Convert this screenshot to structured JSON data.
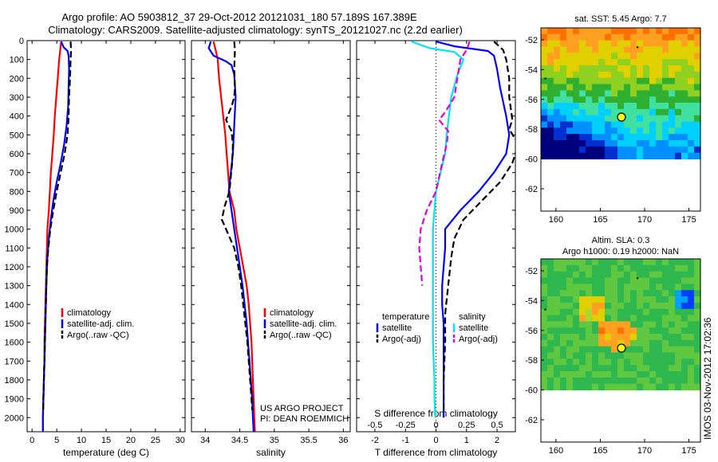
{
  "header": {
    "line1": "Argo profile: AO 5903812_37 29-Oct-2012 20121031_180 57.189S 167.389E",
    "line2": "Climatology: CARS2009. Satellite-adjusted climatology: synTS_20121027.nc (2.2d earlier)"
  },
  "credit": "IMOS 03-Nov-2012 17:02:36",
  "colors": {
    "climatology": "#ff0000",
    "satellite": "#0000ff",
    "argo": "#000000",
    "satellite_cyan": "#00e5ee",
    "argo_magenta": "#e000e0"
  },
  "chart_data": [
    {
      "type": "line",
      "id": "temperature",
      "xlabel": "temperature (deg C)",
      "ylabel": "",
      "xlim": [
        -1,
        31
      ],
      "ylim": [
        2075,
        0
      ],
      "xticks": [
        0,
        5,
        10,
        15,
        20,
        25,
        30
      ],
      "yticks": [
        0,
        100,
        200,
        300,
        400,
        500,
        600,
        700,
        800,
        900,
        1000,
        1100,
        1200,
        1300,
        1400,
        1500,
        1600,
        1700,
        1800,
        1900,
        2000
      ],
      "legend": [
        "climatology",
        "satellite-adj. clim.",
        "Argo(..raw -QC)"
      ],
      "series": [
        {
          "name": "climatology",
          "color": "#ff0000",
          "dash": false,
          "points": [
            [
              5.9,
              5
            ],
            [
              5.7,
              50
            ],
            [
              5.5,
              100
            ],
            [
              5.2,
              200
            ],
            [
              4.9,
              300
            ],
            [
              4.6,
              400
            ],
            [
              4.4,
              500
            ],
            [
              4.1,
              600
            ],
            [
              3.8,
              700
            ],
            [
              3.6,
              800
            ],
            [
              3.4,
              900
            ],
            [
              3.1,
              1000
            ],
            [
              3.0,
              1100
            ],
            [
              2.9,
              1200
            ],
            [
              2.8,
              1300
            ],
            [
              2.7,
              1400
            ],
            [
              2.6,
              1500
            ],
            [
              2.5,
              1600
            ],
            [
              2.5,
              1700
            ],
            [
              2.4,
              1800
            ],
            [
              2.3,
              1900
            ],
            [
              2.2,
              2000
            ],
            [
              2.2,
              2075
            ]
          ]
        },
        {
          "name": "satellite-adj. clim.",
          "color": "#0000ff",
          "dash": false,
          "points": [
            [
              5.9,
              5
            ],
            [
              6.4,
              35
            ],
            [
              7.2,
              55
            ],
            [
              7.4,
              80
            ],
            [
              7.5,
              150
            ],
            [
              7.4,
              250
            ],
            [
              7.3,
              350
            ],
            [
              7.0,
              450
            ],
            [
              6.5,
              550
            ],
            [
              5.8,
              650
            ],
            [
              5.0,
              750
            ],
            [
              4.3,
              850
            ],
            [
              3.8,
              950
            ],
            [
              3.4,
              1050
            ],
            [
              3.1,
              1150
            ],
            [
              2.9,
              1300
            ],
            [
              2.8,
              1400
            ],
            [
              2.7,
              1500
            ],
            [
              2.6,
              1600
            ],
            [
              2.5,
              1700
            ],
            [
              2.4,
              1800
            ],
            [
              2.3,
              1900
            ],
            [
              2.2,
              2000
            ],
            [
              2.2,
              2075
            ]
          ]
        },
        {
          "name": "Argo(..raw -QC)",
          "color": "#000000",
          "dash": true,
          "points": [
            [
              7.8,
              5
            ],
            [
              7.9,
              50
            ],
            [
              7.8,
              100
            ],
            [
              7.7,
              200
            ],
            [
              7.5,
              300
            ],
            [
              7.4,
              400
            ],
            [
              7.2,
              500
            ],
            [
              6.6,
              600
            ],
            [
              5.8,
              700
            ],
            [
              5.0,
              800
            ],
            [
              4.3,
              900
            ],
            [
              3.7,
              1000
            ],
            [
              3.3,
              1100
            ],
            [
              3.0,
              1200
            ],
            [
              2.9,
              1300
            ],
            [
              2.8,
              1400
            ],
            [
              2.7,
              1500
            ],
            [
              2.6,
              1600
            ],
            [
              2.5,
              1700
            ],
            [
              2.4,
              1800
            ],
            [
              2.3,
              1900
            ],
            [
              2.25,
              1960
            ]
          ]
        }
      ]
    },
    {
      "type": "line",
      "id": "salinity",
      "xlabel": "salinity",
      "ylabel": "",
      "xlim": [
        33.8,
        36.1
      ],
      "ylim": [
        2075,
        0
      ],
      "xticks": [
        34,
        34.5,
        35,
        35.5,
        36
      ],
      "legend": [
        "climatology",
        "satellite-adj. clim.",
        "Argo(..raw -QC)"
      ],
      "annotation": [
        "US ARGO PROJECT",
        "PI: DEAN ROEMMICH"
      ],
      "series": [
        {
          "name": "climatology",
          "color": "#ff0000",
          "dash": false,
          "points": [
            [
              34.12,
              5
            ],
            [
              34.15,
              50
            ],
            [
              34.18,
              100
            ],
            [
              34.2,
              200
            ],
            [
              34.23,
              300
            ],
            [
              34.26,
              400
            ],
            [
              34.29,
              500
            ],
            [
              34.31,
              600
            ],
            [
              34.33,
              700
            ],
            [
              34.35,
              800
            ],
            [
              34.42,
              900
            ],
            [
              34.45,
              1000
            ],
            [
              34.5,
              1100
            ],
            [
              34.55,
              1200
            ],
            [
              34.6,
              1300
            ],
            [
              34.63,
              1400
            ],
            [
              34.65,
              1500
            ],
            [
              34.67,
              1600
            ],
            [
              34.68,
              1700
            ],
            [
              34.69,
              1800
            ],
            [
              34.7,
              1900
            ],
            [
              34.71,
              2000
            ],
            [
              34.72,
              2075
            ]
          ]
        },
        {
          "name": "satellite-adj. clim.",
          "color": "#0000ff",
          "dash": false,
          "points": [
            [
              34.08,
              5
            ],
            [
              34.05,
              40
            ],
            [
              34.12,
              80
            ],
            [
              34.3,
              110
            ],
            [
              34.38,
              130
            ],
            [
              34.42,
              180
            ],
            [
              34.44,
              300
            ],
            [
              34.42,
              450
            ],
            [
              34.4,
              600
            ],
            [
              34.37,
              700
            ],
            [
              34.34,
              800
            ],
            [
              34.38,
              900
            ],
            [
              34.42,
              1000
            ],
            [
              34.46,
              1100
            ],
            [
              34.5,
              1200
            ],
            [
              34.54,
              1300
            ],
            [
              34.57,
              1400
            ],
            [
              34.6,
              1500
            ],
            [
              34.62,
              1600
            ],
            [
              34.64,
              1700
            ],
            [
              34.66,
              1800
            ],
            [
              34.68,
              1900
            ],
            [
              34.69,
              2000
            ],
            [
              34.7,
              2075
            ]
          ]
        },
        {
          "name": "Argo(..raw -QC)",
          "color": "#000000",
          "dash": true,
          "points": [
            [
              34.42,
              5
            ],
            [
              34.43,
              50
            ],
            [
              34.42,
              150
            ],
            [
              34.43,
              250
            ],
            [
              34.42,
              300
            ],
            [
              34.38,
              350
            ],
            [
              34.3,
              420
            ],
            [
              34.38,
              480
            ],
            [
              34.4,
              550
            ],
            [
              34.39,
              650
            ],
            [
              34.35,
              800
            ],
            [
              34.28,
              880
            ],
            [
              34.24,
              950
            ],
            [
              34.3,
              1000
            ],
            [
              34.42,
              1100
            ],
            [
              34.48,
              1200
            ],
            [
              34.52,
              1300
            ],
            [
              34.55,
              1400
            ],
            [
              34.58,
              1500
            ],
            [
              34.61,
              1600
            ],
            [
              34.63,
              1700
            ],
            [
              34.65,
              1800
            ],
            [
              34.67,
              1900
            ],
            [
              34.68,
              1960
            ]
          ]
        }
      ]
    },
    {
      "type": "line",
      "id": "difference",
      "xlabel": "T difference from climatology",
      "xlabel_top": "S difference from climatology",
      "xlim": [
        -2.6,
        2.6
      ],
      "ylim": [
        2075,
        0
      ],
      "xticks": [
        -2,
        -1,
        0,
        1,
        2
      ],
      "sticks": [
        -0.5,
        -0.25,
        0,
        0.25,
        0.5
      ],
      "legend_groups": [
        {
          "title": "temperature",
          "items": [
            "satellite",
            "Argo(-adj)"
          ]
        },
        {
          "title": "salinity",
          "items": [
            "satellite",
            "Argo(-adj)"
          ]
        }
      ],
      "series": [
        {
          "name": "satellite",
          "group": "temperature",
          "color": "#0000ff",
          "dash": false,
          "points": [
            [
              0.0,
              5
            ],
            [
              0.6,
              30
            ],
            [
              1.7,
              55
            ],
            [
              1.9,
              80
            ],
            [
              2.0,
              150
            ],
            [
              2.1,
              250
            ],
            [
              2.3,
              400
            ],
            [
              2.4,
              500
            ],
            [
              2.3,
              600
            ],
            [
              1.9,
              700
            ],
            [
              1.4,
              800
            ],
            [
              0.8,
              900
            ],
            [
              0.3,
              1000
            ],
            [
              0.3,
              1100
            ],
            [
              0.25,
              1200
            ],
            [
              0.2,
              1300
            ],
            [
              0.2,
              1400
            ],
            [
              0.25,
              1500
            ],
            [
              0.25,
              1600
            ],
            [
              0.25,
              1700
            ],
            [
              0.25,
              1800
            ],
            [
              0.25,
              1900
            ],
            [
              0.25,
              2000
            ]
          ]
        },
        {
          "name": "Argo(-adj)",
          "group": "temperature",
          "color": "#000000",
          "dash": true,
          "points": [
            [
              1.9,
              5
            ],
            [
              2.2,
              50
            ],
            [
              2.3,
              100
            ],
            [
              2.4,
              200
            ],
            [
              2.4,
              300
            ],
            [
              2.5,
              420
            ],
            [
              2.4,
              470
            ],
            [
              2.7,
              550
            ],
            [
              2.5,
              650
            ],
            [
              2.1,
              750
            ],
            [
              1.5,
              850
            ],
            [
              0.9,
              950
            ],
            [
              0.6,
              1050
            ],
            [
              0.5,
              1150
            ],
            [
              0.4,
              1300
            ],
            [
              0.3,
              1450
            ],
            [
              0.3,
              1600
            ],
            [
              0.25,
              1800
            ],
            [
              0.25,
              1960
            ]
          ]
        },
        {
          "name": "satellite",
          "group": "salinity",
          "color": "#00e5ee",
          "dash": false,
          "points": [
            [
              -0.8,
              5
            ],
            [
              -0.2,
              40
            ],
            [
              0.6,
              60
            ],
            [
              0.9,
              100
            ],
            [
              0.7,
              180
            ],
            [
              0.5,
              300
            ],
            [
              0.35,
              500
            ],
            [
              0.3,
              600
            ],
            [
              0.15,
              700
            ],
            [
              0.0,
              800
            ],
            [
              -0.05,
              900
            ],
            [
              -0.1,
              1000
            ],
            [
              -0.1,
              1200
            ],
            [
              -0.1,
              1400
            ],
            [
              -0.1,
              1600
            ],
            [
              -0.05,
              1800
            ],
            [
              -0.05,
              1900
            ],
            [
              -0.02,
              2000
            ]
          ]
        },
        {
          "name": "Argo(-adj)",
          "group": "salinity",
          "color": "#e000e0",
          "dash": true,
          "points": [
            [
              1.1,
              5
            ],
            [
              1.0,
              50
            ],
            [
              0.8,
              100
            ],
            [
              0.7,
              200
            ],
            [
              0.6,
              300
            ],
            [
              0.3,
              380
            ],
            [
              0.1,
              420
            ],
            [
              0.4,
              480
            ],
            [
              0.35,
              550
            ],
            [
              0.2,
              650
            ],
            [
              0.0,
              800
            ],
            [
              -0.3,
              900
            ],
            [
              -0.5,
              1000
            ],
            [
              -0.55,
              1100
            ],
            [
              -0.5,
              1200
            ],
            [
              -0.45,
              1300
            ]
          ]
        }
      ]
    },
    {
      "type": "heatmap",
      "id": "sst-map",
      "title": "sat. SST: 5.45 Argo: 7.7",
      "xlim": [
        158.3,
        176.3
      ],
      "ylim": [
        -63.5,
        -51.2
      ],
      "xticks": [
        160,
        165,
        170,
        175
      ],
      "yticks": [
        -52,
        -54,
        -56,
        -58,
        -60,
        -62
      ],
      "data_ylim": [
        -60,
        -51.2
      ],
      "marker": [
        167.389,
        -57.189
      ]
    },
    {
      "type": "heatmap",
      "id": "sla-map",
      "title": "Altim. SLA: 0.3",
      "subtitle": "Argo h1000: 0.19 h2000: NaN",
      "xlim": [
        158.3,
        176.3
      ],
      "ylim": [
        -63.5,
        -51.2
      ],
      "xticks": [
        160,
        165,
        170,
        175
      ],
      "yticks": [
        -52,
        -54,
        -56,
        -58,
        -60,
        -62
      ],
      "data_ylim": [
        -60,
        -51.2
      ],
      "marker": [
        167.389,
        -57.189
      ]
    }
  ]
}
